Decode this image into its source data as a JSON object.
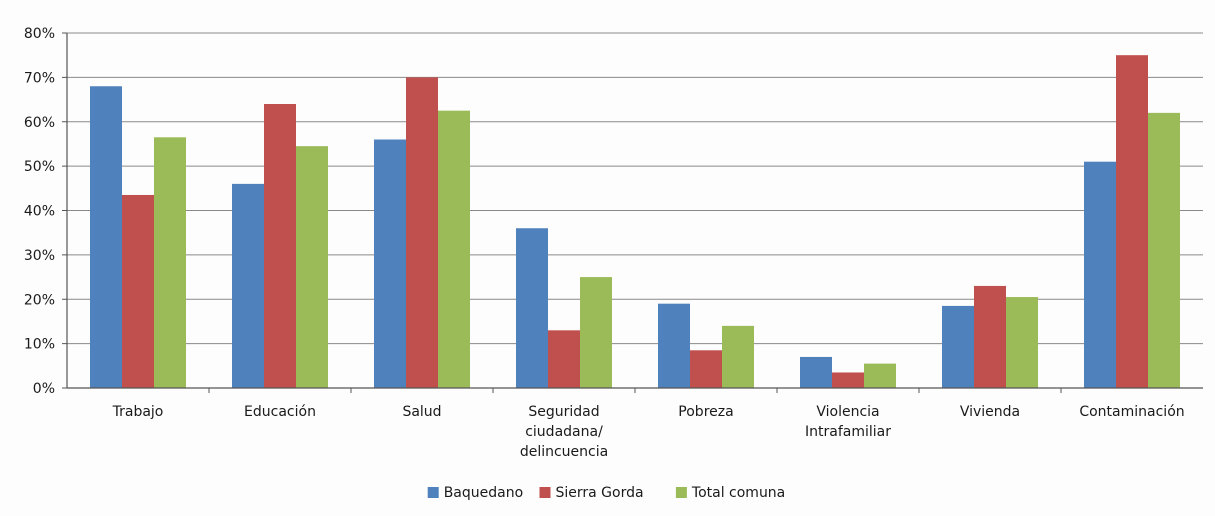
{
  "chart_data": {
    "type": "bar",
    "title": "",
    "xlabel": "",
    "ylabel": "",
    "ylim": [
      0,
      80
    ],
    "y_tick_step": 10,
    "y_unit": "%",
    "grid": true,
    "legend_position": "bottom",
    "categories": [
      [
        "Trabajo"
      ],
      [
        "Educación"
      ],
      [
        "Salud"
      ],
      [
        "Seguridad",
        "ciudadana/",
        "delincuencia"
      ],
      [
        "Pobreza"
      ],
      [
        "Violencia",
        "Intrafamiliar"
      ],
      [
        "Vivienda"
      ],
      [
        "Contaminación"
      ]
    ],
    "y_tick_labels": [
      "0%",
      "10%",
      "20%",
      "30%",
      "40%",
      "50%",
      "60%",
      "70%",
      "80%"
    ],
    "series": [
      {
        "name": "Baquedano",
        "color": "#4f81bd",
        "values": [
          68,
          46,
          56,
          36,
          19,
          7,
          18.5,
          51
        ]
      },
      {
        "name": "Sierra Gorda",
        "color": "#c0504d",
        "values": [
          43.5,
          64,
          70,
          13,
          8.5,
          3.5,
          23,
          75
        ]
      },
      {
        "name": "Total comuna",
        "color": "#9bbb59",
        "values": [
          56.5,
          54.5,
          62.5,
          25,
          14,
          5.5,
          20.5,
          62
        ]
      }
    ]
  }
}
